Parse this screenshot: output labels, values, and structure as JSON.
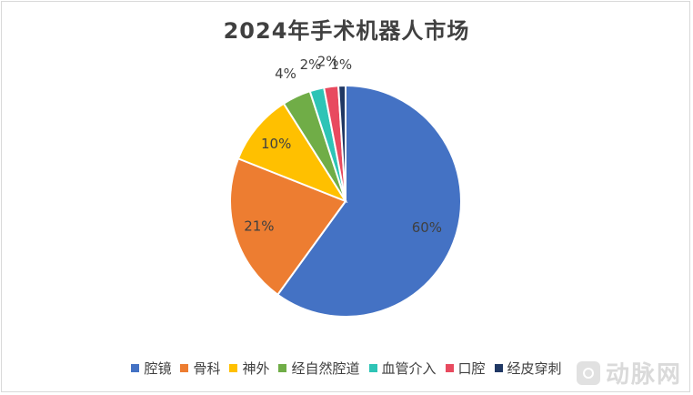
{
  "chart_data": {
    "type": "pie",
    "title": "2024年手术机器人市场",
    "categories": [
      "腔镜",
      "骨科",
      "神外",
      "经自然腔道",
      "血管介入",
      "口腔",
      "经皮穿刺"
    ],
    "values": [
      60,
      21,
      10,
      4,
      2,
      2,
      1
    ],
    "labels": [
      "60%",
      "21%",
      "10%",
      "4%",
      "2%",
      "2%",
      "1%"
    ],
    "colors": [
      "#4472C4",
      "#ED7D31",
      "#FFC000",
      "#70AD47",
      "#2EC4B6",
      "#E84A5F",
      "#203864"
    ],
    "legend_position": "bottom"
  },
  "watermark": {
    "text": "动脉网"
  }
}
